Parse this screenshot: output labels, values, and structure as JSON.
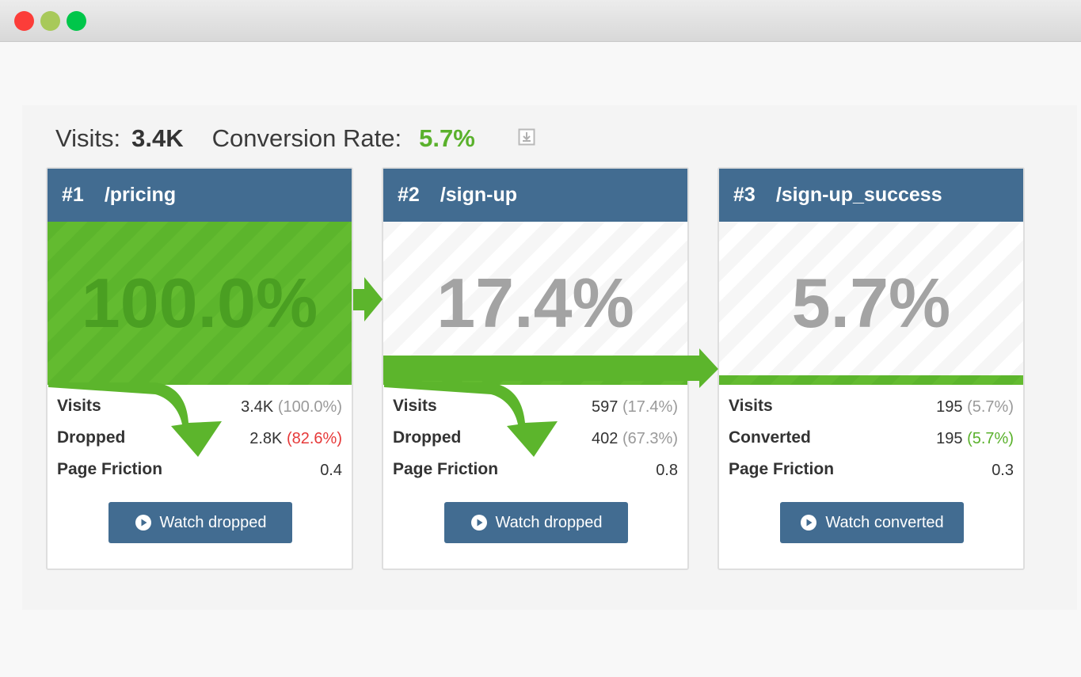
{
  "window": {
    "controls": [
      {
        "name": "close",
        "color": "#fc3d39"
      },
      {
        "name": "minimize",
        "color": "#a8c95a"
      },
      {
        "name": "zoom",
        "color": "#00c64a"
      }
    ]
  },
  "summary": {
    "visits_label": "Visits:",
    "visits_value": "3.4K",
    "rate_label": "Conversion Rate:",
    "rate_value": "5.7%",
    "rate_color": "#5ab12c",
    "download_icon": "download-icon"
  },
  "colors": {
    "header": "#426c91",
    "green": "#5cb52c",
    "danger": "#e63939",
    "success": "#5ab12c"
  },
  "steps": [
    {
      "number": "#1",
      "path": "/pricing",
      "percent": "100.0%",
      "fill_fraction": 1.0,
      "stats": [
        {
          "label": "Visits",
          "value": "3.4K",
          "pct": "(100.0%)",
          "pct_tone": "muted"
        },
        {
          "label": "Dropped",
          "value": "2.8K",
          "pct": "(82.6%)",
          "pct_tone": "danger"
        },
        {
          "label": "Page Friction",
          "value": "0.4",
          "pct": "",
          "pct_tone": "muted"
        }
      ],
      "button": "Watch dropped"
    },
    {
      "number": "#2",
      "path": "/sign-up",
      "percent": "17.4%",
      "fill_fraction": 0.174,
      "stats": [
        {
          "label": "Visits",
          "value": "597",
          "pct": "(17.4%)",
          "pct_tone": "muted"
        },
        {
          "label": "Dropped",
          "value": "402",
          "pct": "(67.3%)",
          "pct_tone": "muted"
        },
        {
          "label": "Page Friction",
          "value": "0.8",
          "pct": "",
          "pct_tone": "muted"
        }
      ],
      "button": "Watch dropped"
    },
    {
      "number": "#3",
      "path": "/sign-up_success",
      "percent": "5.7%",
      "fill_fraction": 0.057,
      "stats": [
        {
          "label": "Visits",
          "value": "195",
          "pct": "(5.7%)",
          "pct_tone": "muted"
        },
        {
          "label": "Converted",
          "value": "195",
          "pct": "(5.7%)",
          "pct_tone": "success"
        },
        {
          "label": "Page Friction",
          "value": "0.3",
          "pct": "",
          "pct_tone": "muted"
        }
      ],
      "button": "Watch converted"
    }
  ]
}
